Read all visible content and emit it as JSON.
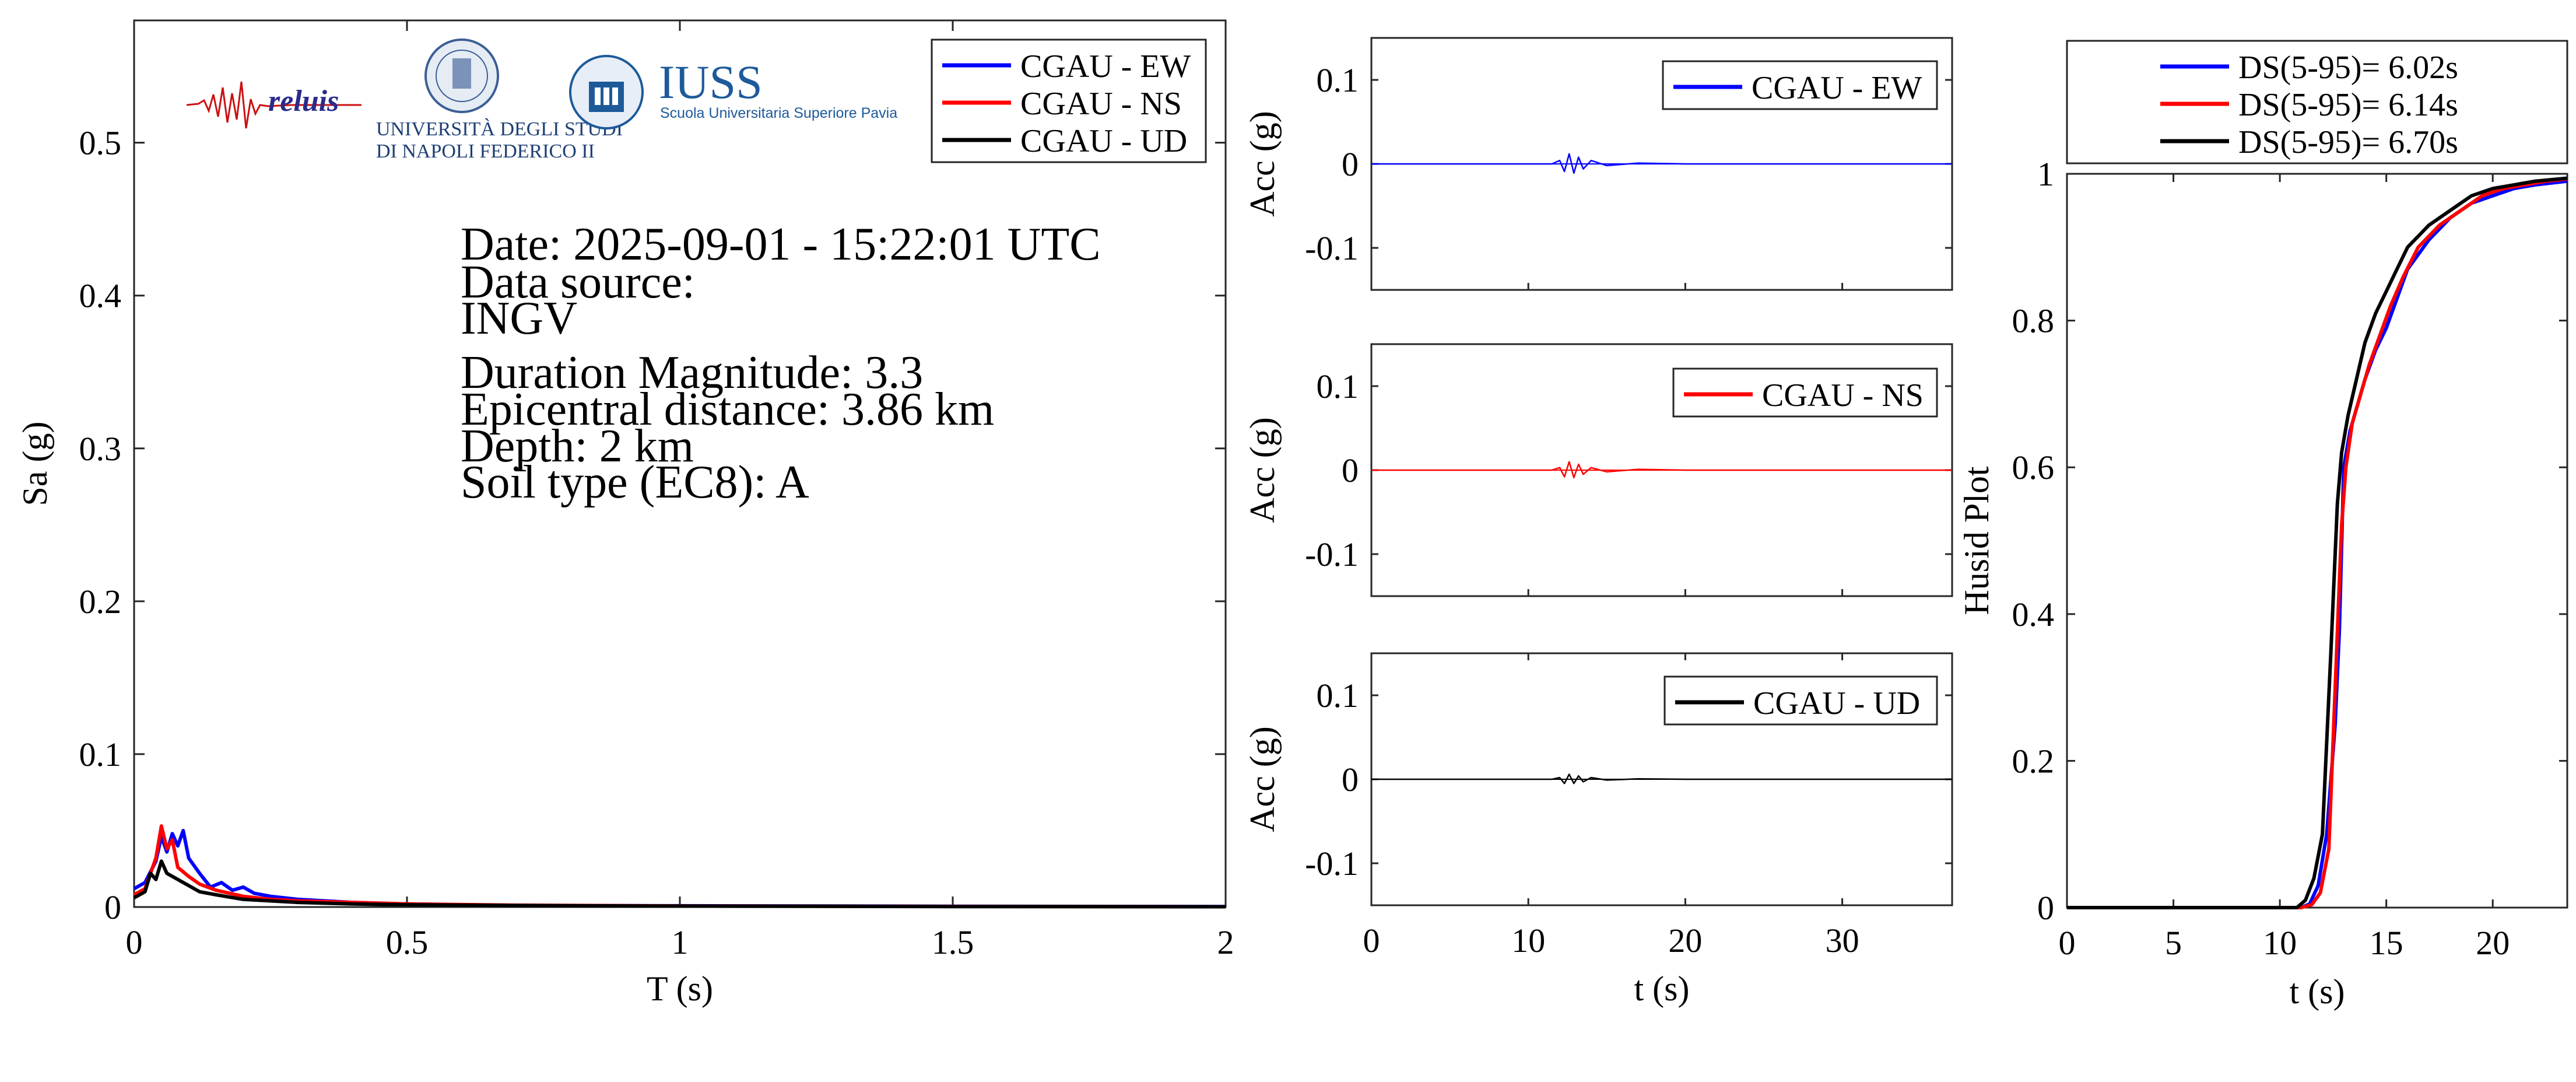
{
  "logos": {
    "reluis": "reluis",
    "unina_line1": "UNIVERSITÀ DEGLI STUDI",
    "unina_line2": "DI NAPOLI FEDERICO II",
    "iuss": "IUSS",
    "iuss_sub": "Scuola Universitaria Superiore Pavia"
  },
  "info": {
    "date": "Date: 2025-09-01 - 15:22:01 UTC",
    "source_label": "Data source:",
    "source": "INGV",
    "magnitude": "Duration Magnitude: 3.3",
    "distance": "Epicentral distance: 3.86 km",
    "depth": "Depth: 2 km",
    "soil": "Soil type (EC8): A"
  },
  "colors": {
    "ew": "#0000ff",
    "ns": "#ff0000",
    "ud": "#000000"
  },
  "chart_data": [
    {
      "id": "spectrum",
      "type": "line",
      "xlabel": "T (s)",
      "ylabel": "Sa (g)",
      "xlim": [
        0,
        2
      ],
      "ylim": [
        0,
        0.58
      ],
      "xticks": [
        0,
        0.5,
        1,
        1.5,
        2
      ],
      "xtick_labels": [
        "0",
        "0.5",
        "1",
        "1.5",
        "2"
      ],
      "yticks": [
        0,
        0.1,
        0.2,
        0.3,
        0.4,
        0.5
      ],
      "ytick_labels": [
        "0",
        "0.1",
        "0.2",
        "0.3",
        "0.4",
        "0.5"
      ],
      "legend": "top-right",
      "series": [
        {
          "name": "CGAU - EW",
          "color": "#0000ff",
          "x": [
            0,
            0.02,
            0.04,
            0.05,
            0.06,
            0.07,
            0.08,
            0.09,
            0.1,
            0.12,
            0.14,
            0.16,
            0.18,
            0.2,
            0.22,
            0.25,
            0.3,
            0.35,
            0.4,
            0.5,
            0.7,
            1.0,
            1.5,
            2.0
          ],
          "y": [
            0.012,
            0.016,
            0.03,
            0.046,
            0.036,
            0.048,
            0.04,
            0.05,
            0.032,
            0.022,
            0.013,
            0.016,
            0.011,
            0.013,
            0.009,
            0.007,
            0.005,
            0.004,
            0.003,
            0.002,
            0.001,
            0.0008,
            0.0005,
            0.0003
          ]
        },
        {
          "name": "CGAU - NS",
          "color": "#ff0000",
          "x": [
            0,
            0.02,
            0.04,
            0.05,
            0.06,
            0.07,
            0.08,
            0.1,
            0.12,
            0.15,
            0.2,
            0.25,
            0.3,
            0.4,
            0.5,
            0.7,
            1.0,
            1.5,
            2.0
          ],
          "y": [
            0.008,
            0.012,
            0.032,
            0.053,
            0.038,
            0.044,
            0.026,
            0.02,
            0.015,
            0.011,
            0.007,
            0.005,
            0.004,
            0.003,
            0.002,
            0.0012,
            0.0007,
            0.0004,
            0.0002
          ]
        },
        {
          "name": "CGAU - UD",
          "color": "#000000",
          "x": [
            0,
            0.02,
            0.03,
            0.04,
            0.05,
            0.06,
            0.08,
            0.1,
            0.12,
            0.15,
            0.2,
            0.25,
            0.3,
            0.4,
            0.5,
            0.7,
            1.0,
            1.5,
            2.0
          ],
          "y": [
            0.006,
            0.01,
            0.022,
            0.018,
            0.03,
            0.022,
            0.018,
            0.014,
            0.01,
            0.008,
            0.005,
            0.004,
            0.003,
            0.002,
            0.0015,
            0.001,
            0.0006,
            0.0003,
            0.0002
          ]
        }
      ]
    },
    {
      "id": "acc-ew",
      "type": "line",
      "xlabel": "",
      "ylabel": "Acc (g)",
      "xlim": [
        0,
        37
      ],
      "ylim": [
        -0.15,
        0.15
      ],
      "yticks": [
        0.1,
        0,
        -0.1
      ],
      "ytick_labels": [
        "0.1",
        "0",
        "-0.1"
      ],
      "legend": "top-right",
      "series": [
        {
          "name": "CGAU - EW",
          "color": "#0000ff",
          "x": [
            0,
            11.5,
            12.0,
            12.3,
            12.6,
            12.9,
            13.2,
            13.5,
            14.0,
            15.0,
            17.0,
            20.0,
            37
          ],
          "y": [
            0,
            0,
            0.004,
            -0.009,
            0.012,
            -0.011,
            0.008,
            -0.006,
            0.004,
            -0.002,
            0.001,
            0,
            0
          ]
        }
      ]
    },
    {
      "id": "acc-ns",
      "type": "line",
      "xlabel": "",
      "ylabel": "Acc (g)",
      "xlim": [
        0,
        37
      ],
      "ylim": [
        -0.15,
        0.15
      ],
      "yticks": [
        0.1,
        0,
        -0.1
      ],
      "ytick_labels": [
        "0.1",
        "0",
        "-0.1"
      ],
      "legend": "top-right",
      "series": [
        {
          "name": "CGAU - NS",
          "color": "#ff0000",
          "x": [
            0,
            11.5,
            12.0,
            12.3,
            12.6,
            12.9,
            13.2,
            13.5,
            14.0,
            15.0,
            17.0,
            20.0,
            37
          ],
          "y": [
            0,
            0,
            0.003,
            -0.008,
            0.01,
            -0.009,
            0.007,
            -0.005,
            0.003,
            -0.002,
            0.001,
            0,
            0
          ]
        }
      ]
    },
    {
      "id": "acc-ud",
      "type": "line",
      "xlabel": "t (s)",
      "ylabel": "Acc (g)",
      "xlim": [
        0,
        37
      ],
      "ylim": [
        -0.15,
        0.15
      ],
      "xticks": [
        0,
        10,
        20,
        30
      ],
      "xtick_labels": [
        "0",
        "10",
        "20",
        "30"
      ],
      "yticks": [
        0.1,
        0,
        -0.1
      ],
      "ytick_labels": [
        "0.1",
        "0",
        "-0.1"
      ],
      "legend": "top-right",
      "series": [
        {
          "name": "CGAU - UD",
          "color": "#000000",
          "x": [
            0,
            11.5,
            12.0,
            12.3,
            12.6,
            12.9,
            13.2,
            13.5,
            14.0,
            15.0,
            17.0,
            20.0,
            37
          ],
          "y": [
            0,
            0,
            0.002,
            -0.005,
            0.006,
            -0.005,
            0.004,
            -0.003,
            0.002,
            -0.001,
            0.0005,
            0,
            0
          ]
        }
      ]
    },
    {
      "id": "husid",
      "type": "line",
      "xlabel": "t (s)",
      "ylabel": "Husid Plot",
      "xlim": [
        0,
        23.5
      ],
      "ylim": [
        0,
        1
      ],
      "xticks": [
        0,
        5,
        10,
        15,
        20
      ],
      "xtick_labels": [
        "0",
        "5",
        "10",
        "15",
        "20"
      ],
      "yticks": [
        0,
        0.2,
        0.4,
        0.6,
        0.8,
        1
      ],
      "ytick_labels": [
        "0",
        "0.2",
        "0.4",
        "0.6",
        "0.8",
        "1"
      ],
      "legend": "top (outside)",
      "series": [
        {
          "name": "DS(5-95)= 6.02s",
          "color": "#0000ff",
          "x": [
            0,
            11.0,
            11.4,
            11.8,
            12.2,
            12.6,
            12.8,
            13.0,
            13.3,
            13.6,
            14.0,
            14.5,
            15.0,
            15.5,
            16.0,
            17.0,
            18.0,
            19.0,
            20.0,
            21.0,
            22.0,
            23.5
          ],
          "y": [
            0,
            0,
            0.005,
            0.03,
            0.1,
            0.25,
            0.38,
            0.6,
            0.65,
            0.68,
            0.72,
            0.76,
            0.79,
            0.83,
            0.87,
            0.91,
            0.94,
            0.96,
            0.97,
            0.98,
            0.985,
            0.99
          ]
        },
        {
          "name": "DS(5-95)= 6.14s",
          "color": "#ff0000",
          "x": [
            0,
            11.0,
            11.5,
            11.9,
            12.3,
            12.6,
            12.9,
            13.1,
            13.4,
            13.8,
            14.2,
            14.7,
            15.2,
            15.8,
            16.5,
            17.5,
            18.5,
            19.5,
            20.5,
            21.5,
            22.5,
            23.5
          ],
          "y": [
            0,
            0,
            0.004,
            0.02,
            0.08,
            0.3,
            0.52,
            0.6,
            0.66,
            0.7,
            0.74,
            0.78,
            0.82,
            0.86,
            0.9,
            0.93,
            0.95,
            0.97,
            0.98,
            0.985,
            0.99,
            0.993
          ]
        },
        {
          "name": "DS(5-95)= 6.70s",
          "color": "#000000",
          "x": [
            0,
            10.8,
            11.2,
            11.6,
            12.0,
            12.4,
            12.7,
            12.9,
            13.2,
            13.6,
            14.0,
            14.5,
            15.0,
            15.5,
            16.0,
            17.0,
            18.0,
            19.0,
            20.0,
            21.0,
            22.0,
            23.5
          ],
          "y": [
            0,
            0,
            0.01,
            0.04,
            0.1,
            0.35,
            0.55,
            0.62,
            0.67,
            0.72,
            0.77,
            0.81,
            0.84,
            0.87,
            0.9,
            0.93,
            0.95,
            0.97,
            0.98,
            0.985,
            0.99,
            0.994
          ]
        }
      ]
    }
  ]
}
